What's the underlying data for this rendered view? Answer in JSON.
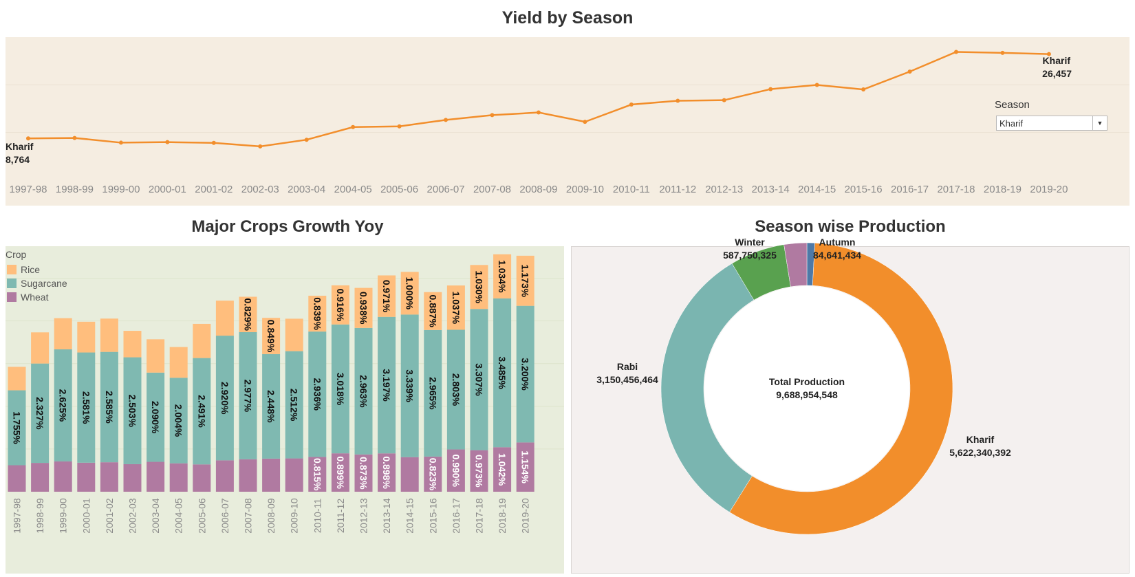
{
  "titles": {
    "yield": "Yield by Season",
    "crops": "Major Crops Growth Yoy",
    "production": "Season wise Production"
  },
  "filter": {
    "label": "Season",
    "selected": "Kharif"
  },
  "colors": {
    "line": "#f28e2b",
    "line_bg": "#f5ede1",
    "rice": "#ffbe7d",
    "sugarcane": "#7fb9b1",
    "wheat": "#b07aa1",
    "bar_bg": "#e8eddc",
    "kharif": "#f28e2b",
    "rabi": "#7ab5b0",
    "winter": "#59a14f",
    "autumn_outer": "#b07aa1",
    "autumn": "#4e79a7",
    "donut_bg": "#f4f0ef"
  },
  "legend": {
    "title": "Crop",
    "items": [
      "Rice",
      "Sugarcane",
      "Wheat"
    ]
  },
  "chart_data": [
    {
      "type": "line",
      "title": "Yield by Season",
      "series": [
        {
          "name": "Kharif"
        }
      ],
      "x": [
        "1997-98",
        "1998-99",
        "1999-00",
        "2000-01",
        "2001-02",
        "2002-03",
        "2003-04",
        "2004-05",
        "2005-06",
        "2006-07",
        "2007-08",
        "2008-09",
        "2009-10",
        "2010-11",
        "2011-12",
        "2012-13",
        "2013-14",
        "2014-15",
        "2015-16",
        "2016-17",
        "2017-18",
        "2018-19",
        "2019-20"
      ],
      "y": [
        8764,
        8860,
        7870,
        7980,
        7820,
        7080,
        8480,
        11140,
        11280,
        12640,
        13640,
        14200,
        12240,
        15860,
        16650,
        16780,
        19100,
        19980,
        19030,
        22770,
        26900,
        26700,
        26457
      ],
      "annotations": [
        {
          "label": "Kharif",
          "value": "8,764"
        },
        {
          "label": "Kharif",
          "value": "26,457"
        }
      ],
      "ylim": [
        0,
        30000
      ],
      "grid": true
    },
    {
      "type": "bar",
      "title": "Major Crops Growth Yoy",
      "stacked": true,
      "categories": [
        "1997-98",
        "1998-99",
        "1999-00",
        "2000-01",
        "2001-02",
        "2002-03",
        "2003-04",
        "2004-05",
        "2005-06",
        "2006-07",
        "2007-08",
        "2008-09",
        "2009-10",
        "2010-11",
        "2011-12",
        "2012-13",
        "2013-14",
        "2014-15",
        "2015-16",
        "2016-17",
        "2017-18",
        "2018-19",
        "2019-20"
      ],
      "series": [
        {
          "name": "Wheat",
          "values": [
            0.62,
            0.675,
            0.71,
            0.68,
            0.69,
            0.645,
            0.7,
            0.665,
            0.64,
            0.735,
            0.76,
            0.775,
            0.78,
            0.815,
            0.899,
            0.873,
            0.898,
            0.81,
            0.823,
            0.99,
            0.973,
            1.042,
            1.154
          ],
          "labels": [
            "",
            "",
            "",
            "",
            "",
            "",
            "",
            "",
            "",
            "",
            "",
            "",
            "",
            "0.815%",
            "0.899%",
            "0.873%",
            "0.898%",
            "",
            "0.823%",
            "0.990%",
            "0.973%",
            "1.042%",
            "1.154%"
          ]
        },
        {
          "name": "Sugarcane",
          "values": [
            1.755,
            2.327,
            2.625,
            2.581,
            2.585,
            2.503,
            2.09,
            2.004,
            2.491,
            2.92,
            2.977,
            2.448,
            2.512,
            2.936,
            3.018,
            2.963,
            3.197,
            3.339,
            2.965,
            2.803,
            3.307,
            3.485,
            3.2
          ],
          "labels": [
            "1.755%",
            "2.327%",
            "2.625%",
            "2.581%",
            "2.585%",
            "2.503%",
            "2.090%",
            "2.004%",
            "2.491%",
            "2.920%",
            "2.977%",
            "2.448%",
            "2.512%",
            "2.936%",
            "3.018%",
            "2.963%",
            "3.197%",
            "3.339%",
            "2.965%",
            "2.803%",
            "3.307%",
            "3.485%",
            "3.200%"
          ]
        },
        {
          "name": "Rice",
          "values": [
            0.55,
            0.73,
            0.73,
            0.72,
            0.78,
            0.62,
            0.78,
            0.72,
            0.8,
            0.82,
            0.829,
            0.849,
            0.76,
            0.839,
            0.916,
            0.938,
            0.971,
            1.0,
            0.887,
            1.037,
            1.03,
            1.034,
            1.173
          ],
          "labels": [
            "",
            "",
            "",
            "",
            "",
            "",
            "",
            "",
            "",
            "",
            "0.829%",
            "0.849%",
            "",
            "0.839%",
            "0.916%",
            "0.938%",
            "0.971%",
            "1.000%",
            "0.887%",
            "1.037%",
            "1.030%",
            "1.034%",
            "1.173%"
          ]
        }
      ],
      "ylim": [
        0,
        5.75
      ],
      "grid": true
    },
    {
      "type": "pie",
      "title": "Season wise Production",
      "donut": true,
      "center_label": "Total Production",
      "center_value": "9,688,954,548",
      "slices": [
        {
          "name": "Autumn",
          "value": 84641434,
          "label": "84,641,434"
        },
        {
          "name": "Kharif",
          "value": 5622340392,
          "label": "5,622,340,392"
        },
        {
          "name": "Rabi",
          "value": 3150456464,
          "label": "3,150,456,464"
        },
        {
          "name": "Winter",
          "value": 587750325,
          "label": "587,750,325"
        },
        {
          "name": "",
          "value": 243765933,
          "label": ""
        }
      ]
    }
  ]
}
